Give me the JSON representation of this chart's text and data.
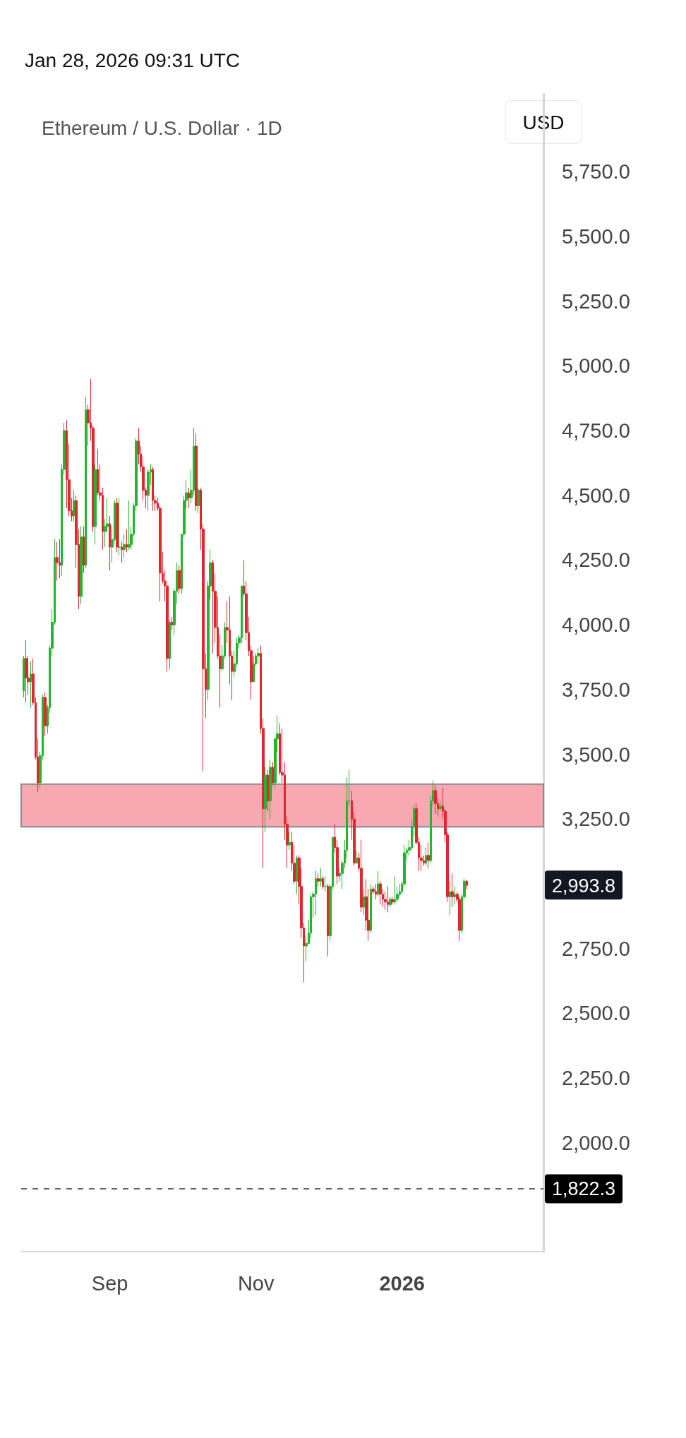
{
  "chart_data": {
    "type": "candlestick",
    "title": "Ethereum / U.S. Dollar · 1D",
    "subtitle": "Jan 28, 2026 09:31 UTC",
    "ylabel": "USD",
    "x": [
      "2025-07-27",
      "2025-07-28",
      "2025-07-29",
      "2025-07-30",
      "2025-07-31",
      "2025-08-01",
      "2025-08-02",
      "2025-08-03",
      "2025-08-04",
      "2025-08-05",
      "2025-08-06",
      "2025-08-07",
      "2025-08-08",
      "2025-08-09",
      "2025-08-10",
      "2025-08-11",
      "2025-08-12",
      "2025-08-13",
      "2025-08-14",
      "2025-08-15",
      "2025-08-16",
      "2025-08-17",
      "2025-08-18",
      "2025-08-19",
      "2025-08-20",
      "2025-08-21",
      "2025-08-22",
      "2025-08-23",
      "2025-08-24",
      "2025-08-25",
      "2025-08-26",
      "2025-08-27",
      "2025-08-28",
      "2025-08-29",
      "2025-08-30",
      "2025-08-31",
      "2025-09-01",
      "2025-09-02",
      "2025-09-03",
      "2025-09-04",
      "2025-09-05",
      "2025-09-06",
      "2025-09-07",
      "2025-09-08",
      "2025-09-09",
      "2025-09-10",
      "2025-09-11",
      "2025-09-12",
      "2025-09-13",
      "2025-09-14",
      "2025-09-15",
      "2025-09-16",
      "2025-09-17",
      "2025-09-18",
      "2025-09-19",
      "2025-09-20",
      "2025-09-21",
      "2025-09-22",
      "2025-09-23",
      "2025-09-24",
      "2025-09-25",
      "2025-09-26",
      "2025-09-27",
      "2025-09-28",
      "2025-09-29",
      "2025-09-30",
      "2025-10-01",
      "2025-10-02",
      "2025-10-03",
      "2025-10-04",
      "2025-10-05",
      "2025-10-06",
      "2025-10-07",
      "2025-10-08",
      "2025-10-09",
      "2025-10-10",
      "2025-10-11",
      "2025-10-12",
      "2025-10-13",
      "2025-10-14",
      "2025-10-15",
      "2025-10-16",
      "2025-10-17",
      "2025-10-18",
      "2025-10-19",
      "2025-10-20",
      "2025-10-21",
      "2025-10-22",
      "2025-10-23",
      "2025-10-24",
      "2025-10-25",
      "2025-10-26",
      "2025-10-27",
      "2025-10-28",
      "2025-10-29",
      "2025-10-30",
      "2025-10-31",
      "2025-11-01",
      "2025-11-02",
      "2025-11-03",
      "2025-11-04",
      "2025-11-05",
      "2025-11-06",
      "2025-11-07",
      "2025-11-08",
      "2025-11-09",
      "2025-11-10",
      "2025-11-11",
      "2025-11-12",
      "2025-11-13",
      "2025-11-14",
      "2025-11-15",
      "2025-11-16",
      "2025-11-17",
      "2025-11-18",
      "2025-11-19",
      "2025-11-20",
      "2025-11-21",
      "2025-11-22",
      "2025-11-23",
      "2025-11-24",
      "2025-11-25",
      "2025-11-26",
      "2025-11-27",
      "2025-11-28",
      "2025-11-29",
      "2025-11-30",
      "2025-12-01",
      "2025-12-02",
      "2025-12-03",
      "2025-12-04",
      "2025-12-05",
      "2025-12-06",
      "2025-12-07",
      "2025-12-08",
      "2025-12-09",
      "2025-12-10",
      "2025-12-11",
      "2025-12-12",
      "2025-12-13",
      "2025-12-14",
      "2025-12-15",
      "2025-12-16",
      "2025-12-17",
      "2025-12-18",
      "2025-12-19",
      "2025-12-20",
      "2025-12-21",
      "2025-12-22",
      "2025-12-23",
      "2025-12-24",
      "2025-12-25",
      "2025-12-26",
      "2025-12-27",
      "2025-12-28",
      "2025-12-29",
      "2025-12-30",
      "2025-12-31",
      "2026-01-01",
      "2026-01-02",
      "2026-01-03",
      "2026-01-04",
      "2026-01-05",
      "2026-01-06",
      "2026-01-07",
      "2026-01-08",
      "2026-01-09",
      "2026-01-10",
      "2026-01-11",
      "2026-01-12",
      "2026-01-13",
      "2026-01-14",
      "2026-01-15",
      "2026-01-16",
      "2026-01-17",
      "2026-01-18",
      "2026-01-19",
      "2026-01-20",
      "2026-01-21",
      "2026-01-22",
      "2026-01-23",
      "2026-01-24",
      "2026-01-25",
      "2026-01-26",
      "2026-01-27",
      "2026-01-28"
    ],
    "ohlc": [
      [
        3745,
        3880,
        3720,
        3870
      ],
      [
        3870,
        3940,
        3700,
        3795
      ],
      [
        3795,
        3880,
        3730,
        3780
      ],
      [
        3780,
        3860,
        3680,
        3810
      ],
      [
        3810,
        3870,
        3690,
        3700
      ],
      [
        3700,
        3720,
        3480,
        3490
      ],
      [
        3490,
        3560,
        3355,
        3390
      ],
      [
        3390,
        3510,
        3370,
        3495
      ],
      [
        3495,
        3730,
        3480,
        3720
      ],
      [
        3720,
        3740,
        3570,
        3610
      ],
      [
        3610,
        3690,
        3580,
        3680
      ],
      [
        3680,
        3920,
        3660,
        3910
      ],
      [
        3910,
        4060,
        3880,
        4010
      ],
      [
        4010,
        4330,
        4000,
        4260
      ],
      [
        4260,
        4320,
        4170,
        4240
      ],
      [
        4240,
        4330,
        4180,
        4230
      ],
      [
        4230,
        4620,
        4190,
        4600
      ],
      [
        4600,
        4780,
        4580,
        4750
      ],
      [
        4750,
        4790,
        4450,
        4560
      ],
      [
        4560,
        4700,
        4420,
        4440
      ],
      [
        4440,
        4490,
        4400,
        4420
      ],
      [
        4420,
        4520,
        4400,
        4480
      ],
      [
        4480,
        4500,
        4220,
        4310
      ],
      [
        4310,
        4370,
        4060,
        4110
      ],
      [
        4110,
        4380,
        4080,
        4340
      ],
      [
        4340,
        4380,
        4200,
        4230
      ],
      [
        4230,
        4880,
        4220,
        4830
      ],
      [
        4830,
        4850,
        4690,
        4780
      ],
      [
        4780,
        4950,
        4710,
        4760
      ],
      [
        4760,
        4770,
        4360,
        4380
      ],
      [
        4380,
        4620,
        4310,
        4600
      ],
      [
        4600,
        4680,
        4500,
        4510
      ],
      [
        4510,
        4620,
        4480,
        4500
      ],
      [
        4500,
        4530,
        4290,
        4360
      ],
      [
        4360,
        4410,
        4300,
        4380
      ],
      [
        4380,
        4490,
        4360,
        4390
      ],
      [
        4390,
        4420,
        4210,
        4300
      ],
      [
        4300,
        4380,
        4240,
        4330
      ],
      [
        4330,
        4480,
        4320,
        4470
      ],
      [
        4470,
        4490,
        4280,
        4300
      ],
      [
        4300,
        4490,
        4270,
        4300
      ],
      [
        4300,
        4320,
        4240,
        4290
      ],
      [
        4290,
        4350,
        4260,
        4310
      ],
      [
        4310,
        4370,
        4280,
        4300
      ],
      [
        4300,
        4480,
        4290,
        4310
      ],
      [
        4310,
        4380,
        4290,
        4350
      ],
      [
        4350,
        4470,
        4340,
        4460
      ],
      [
        4460,
        4720,
        4440,
        4710
      ],
      [
        4710,
        4760,
        4620,
        4660
      ],
      [
        4660,
        4690,
        4590,
        4610
      ],
      [
        4610,
        4650,
        4480,
        4520
      ],
      [
        4520,
        4530,
        4450,
        4500
      ],
      [
        4500,
        4600,
        4440,
        4590
      ],
      [
        4590,
        4620,
        4540,
        4600
      ],
      [
        4600,
        4610,
        4440,
        4480
      ],
      [
        4480,
        4500,
        4440,
        4470
      ],
      [
        4470,
        4490,
        4440,
        4450
      ],
      [
        4450,
        4460,
        4090,
        4200
      ],
      [
        4200,
        4280,
        4160,
        4170
      ],
      [
        4170,
        4210,
        4090,
        4150
      ],
      [
        4150,
        4170,
        3820,
        3870
      ],
      [
        3870,
        4020,
        3830,
        4010
      ],
      [
        4010,
        4030,
        3980,
        4000
      ],
      [
        4000,
        4140,
        3960,
        4130
      ],
      [
        4130,
        4240,
        4080,
        4210
      ],
      [
        4210,
        4230,
        4120,
        4140
      ],
      [
        4140,
        4350,
        4120,
        4350
      ],
      [
        4350,
        4500,
        4340,
        4480
      ],
      [
        4480,
        4560,
        4450,
        4510
      ],
      [
        4510,
        4530,
        4450,
        4490
      ],
      [
        4490,
        4600,
        4470,
        4520
      ],
      [
        4520,
        4760,
        4500,
        4690
      ],
      [
        4690,
        4740,
        4440,
        4460
      ],
      [
        4460,
        4530,
        4430,
        4520
      ],
      [
        4520,
        4530,
        4290,
        4370
      ],
      [
        4370,
        4390,
        3435,
        3830
      ],
      [
        3830,
        3890,
        3640,
        3750
      ],
      [
        3750,
        4170,
        3710,
        4150
      ],
      [
        4150,
        4290,
        4100,
        4240
      ],
      [
        4240,
        4250,
        3890,
        4130
      ],
      [
        4130,
        4200,
        3930,
        3990
      ],
      [
        3990,
        4110,
        3870,
        3880
      ],
      [
        3880,
        3960,
        3680,
        3830
      ],
      [
        3830,
        3920,
        3820,
        3880
      ],
      [
        3880,
        4010,
        3870,
        3990
      ],
      [
        3990,
        4090,
        3930,
        3980
      ],
      [
        3980,
        4110,
        3770,
        3880
      ],
      [
        3880,
        3900,
        3710,
        3820
      ],
      [
        3820,
        3900,
        3800,
        3850
      ],
      [
        3850,
        3950,
        3840,
        3930
      ],
      [
        3930,
        3960,
        3910,
        3950
      ],
      [
        3950,
        4150,
        3930,
        4150
      ],
      [
        4150,
        4250,
        4110,
        4120
      ],
      [
        4120,
        4170,
        3940,
        3970
      ],
      [
        3970,
        4030,
        3880,
        3900
      ],
      [
        3900,
        3920,
        3710,
        3780
      ],
      [
        3780,
        3880,
        3780,
        3850
      ],
      [
        3850,
        3890,
        3840,
        3880
      ],
      [
        3880,
        3910,
        3850,
        3890
      ],
      [
        3890,
        3920,
        3580,
        3600
      ],
      [
        3600,
        3640,
        3060,
        3290
      ],
      [
        3290,
        3450,
        3200,
        3420
      ],
      [
        3420,
        3440,
        3280,
        3320
      ],
      [
        3320,
        3480,
        3250,
        3450
      ],
      [
        3450,
        3470,
        3380,
        3390
      ],
      [
        3390,
        3560,
        3370,
        3560
      ],
      [
        3560,
        3650,
        3510,
        3580
      ],
      [
        3580,
        3620,
        3420,
        3430
      ],
      [
        3430,
        3600,
        3390,
        3420
      ],
      [
        3420,
        3470,
        3170,
        3230
      ],
      [
        3230,
        3260,
        3060,
        3150
      ],
      [
        3150,
        3200,
        3130,
        3160
      ],
      [
        3160,
        3200,
        3050,
        3080
      ],
      [
        3080,
        3150,
        3000,
        3010
      ],
      [
        3010,
        3110,
        2960,
        3100
      ],
      [
        3100,
        3110,
        2920,
        2990
      ],
      [
        2990,
        3060,
        2790,
        2830
      ],
      [
        2830,
        2850,
        2620,
        2760
      ],
      [
        2760,
        2800,
        2700,
        2770
      ],
      [
        2770,
        2860,
        2770,
        2810
      ],
      [
        2810,
        2960,
        2790,
        2950
      ],
      [
        2950,
        2970,
        2870,
        2960
      ],
      [
        2960,
        3050,
        2880,
        3020
      ],
      [
        3020,
        3040,
        2990,
        3010
      ],
      [
        3010,
        3060,
        2990,
        3020
      ],
      [
        3020,
        3030,
        2980,
        2990
      ],
      [
        2990,
        3030,
        2970,
        2990
      ],
      [
        2990,
        3000,
        2720,
        2800
      ],
      [
        2800,
        3000,
        2780,
        2990
      ],
      [
        2990,
        3180,
        2980,
        3180
      ],
      [
        3180,
        3230,
        3120,
        3140
      ],
      [
        3140,
        3170,
        3000,
        3030
      ],
      [
        3030,
        3060,
        3010,
        3040
      ],
      [
        3040,
        3090,
        2980,
        3080
      ],
      [
        3080,
        3170,
        3060,
        3130
      ],
      [
        3130,
        3410,
        3100,
        3320
      ],
      [
        3320,
        3440,
        3300,
        3320
      ],
      [
        3320,
        3360,
        3170,
        3250
      ],
      [
        3250,
        3280,
        3070,
        3080
      ],
      [
        3080,
        3130,
        3080,
        3100
      ],
      [
        3100,
        3120,
        3050,
        3060
      ],
      [
        3060,
        3170,
        2890,
        2910
      ],
      [
        2910,
        2980,
        2880,
        2950
      ],
      [
        2950,
        3020,
        2820,
        2860
      ],
      [
        2860,
        2980,
        2780,
        2820
      ],
      [
        2820,
        3000,
        2810,
        2980
      ],
      [
        2980,
        2990,
        2960,
        2970
      ],
      [
        2970,
        3000,
        2940,
        2960
      ],
      [
        2960,
        3050,
        2950,
        3000
      ],
      [
        3000,
        3010,
        2920,
        2960
      ],
      [
        2960,
        2980,
        2910,
        2940
      ],
      [
        2940,
        2970,
        2900,
        2930
      ],
      [
        2930,
        2990,
        2890,
        2920
      ],
      [
        2920,
        2950,
        2910,
        2940
      ],
      [
        2940,
        2950,
        2920,
        2930
      ],
      [
        2930,
        3030,
        2920,
        2940
      ],
      [
        2940,
        2990,
        2930,
        2960
      ],
      [
        2960,
        3000,
        2950,
        2970
      ],
      [
        2970,
        3010,
        2960,
        3000
      ],
      [
        3000,
        3150,
        2990,
        3120
      ],
      [
        3120,
        3140,
        3090,
        3130
      ],
      [
        3130,
        3170,
        3110,
        3140
      ],
      [
        3140,
        3250,
        3130,
        3220
      ],
      [
        3220,
        3300,
        3180,
        3290
      ],
      [
        3290,
        3310,
        3150,
        3160
      ],
      [
        3160,
        3180,
        3050,
        3100
      ],
      [
        3100,
        3150,
        3050,
        3090
      ],
      [
        3090,
        3110,
        3070,
        3080
      ],
      [
        3080,
        3140,
        3070,
        3110
      ],
      [
        3110,
        3160,
        3060,
        3090
      ],
      [
        3090,
        3340,
        3080,
        3320
      ],
      [
        3320,
        3400,
        3300,
        3360
      ],
      [
        3360,
        3380,
        3270,
        3310
      ],
      [
        3310,
        3330,
        3260,
        3290
      ],
      [
        3290,
        3320,
        3280,
        3300
      ],
      [
        3300,
        3370,
        3250,
        3280
      ],
      [
        3280,
        3290,
        3160,
        3190
      ],
      [
        3190,
        3200,
        2930,
        2950
      ],
      [
        2950,
        3010,
        2880,
        2970
      ],
      [
        2970,
        3040,
        2910,
        2950
      ],
      [
        2950,
        2990,
        2920,
        2960
      ],
      [
        2960,
        2970,
        2930,
        2940
      ],
      [
        2940,
        2950,
        2780,
        2820
      ],
      [
        2820,
        2960,
        2810,
        2950
      ],
      [
        2950,
        3020,
        2940,
        3010
      ],
      [
        3010,
        3015,
        2980,
        2994
      ]
    ],
    "xlim": [
      "2025-07-26",
      "2026-03-01"
    ],
    "xticks": [
      {
        "value": "2025-09-01",
        "label": "Sep"
      },
      {
        "value": "2025-11-01",
        "label": "Nov"
      },
      {
        "value": "2026-01-01",
        "label": "2026"
      }
    ],
    "ylim": [
      1580,
      6050
    ],
    "yticks": [
      {
        "value": 2000,
        "label": "2,000.0"
      },
      {
        "value": 2250,
        "label": "2,250.0"
      },
      {
        "value": 2500,
        "label": "2,500.0"
      },
      {
        "value": 2750,
        "label": "2,750.0"
      },
      {
        "value": 3250,
        "label": "3,250.0"
      },
      {
        "value": 3500,
        "label": "3,500.0"
      },
      {
        "value": 3750,
        "label": "3,750.0"
      },
      {
        "value": 4000,
        "label": "4,000.0"
      },
      {
        "value": 4250,
        "label": "4,250.0"
      },
      {
        "value": 4500,
        "label": "4,500.0"
      },
      {
        "value": 4750,
        "label": "4,750.0"
      },
      {
        "value": 5000,
        "label": "5,000.0"
      },
      {
        "value": 5250,
        "label": "5,250.0"
      },
      {
        "value": 5500,
        "label": "5,500.0"
      },
      {
        "value": 5750,
        "label": "5,750.0"
      }
    ],
    "bands": [
      {
        "axis": "y",
        "from": 3220,
        "to": 3385,
        "color": "#f7a8b0"
      }
    ],
    "ref_lines": [
      {
        "axis": "y",
        "value": 1822.3,
        "label": "1,822.3",
        "line_style": "dashed",
        "color": "#333333"
      }
    ],
    "annotations": [
      "2,993.8"
    ],
    "grid": false
  }
}
